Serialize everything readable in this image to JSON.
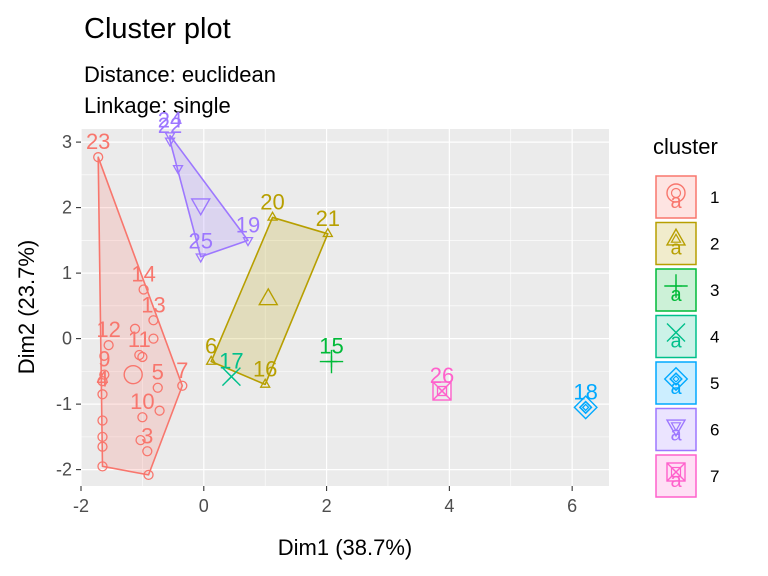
{
  "chart_data": {
    "type": "scatter",
    "title": "Cluster plot",
    "subtitle_lines": [
      "Distance:  euclidean",
      "Linkage:  single"
    ],
    "xlabel": "Dim1 (38.7%)",
    "ylabel": "Dim2 (23.7%)",
    "xlim": [
      -2.0,
      6.6
    ],
    "ylim": [
      -2.25,
      3.2
    ],
    "xticks": [
      -2,
      0,
      2,
      4,
      6
    ],
    "yticks": [
      -2,
      -1,
      0,
      1,
      2,
      3
    ],
    "grid": true,
    "legend": {
      "title": "cluster",
      "position": "right"
    },
    "clusters": [
      {
        "name": "1",
        "color": "#F8766D",
        "shape": "circle",
        "hull": true,
        "center": {
          "x": -1.15,
          "y": -0.55
        },
        "points": [
          {
            "label": "23",
            "x": -1.72,
            "y": 2.77
          },
          {
            "label": "14",
            "x": -0.98,
            "y": 0.75
          },
          {
            "label": "",
            "x": -1.12,
            "y": 0.15
          },
          {
            "label": "13",
            "x": -0.82,
            "y": 0.28
          },
          {
            "label": "12",
            "x": -1.55,
            "y": -0.1
          },
          {
            "label": "",
            "x": -0.82,
            "y": 0.0
          },
          {
            "label": "11",
            "x": -1.05,
            "y": -0.25
          },
          {
            "label": "",
            "x": -1.0,
            "y": -0.28
          },
          {
            "label": "7",
            "x": -0.35,
            "y": -0.72
          },
          {
            "label": "9",
            "x": -1.62,
            "y": -0.55
          },
          {
            "label": "",
            "x": -1.65,
            "y": -0.65
          },
          {
            "label": "5",
            "x": -0.75,
            "y": -0.75
          },
          {
            "label": "4",
            "x": -1.65,
            "y": -0.85
          },
          {
            "label": "",
            "x": -0.72,
            "y": -1.1
          },
          {
            "label": "10",
            "x": -1.0,
            "y": -1.2
          },
          {
            "label": "",
            "x": -1.65,
            "y": -1.25
          },
          {
            "label": "",
            "x": -1.65,
            "y": -1.5
          },
          {
            "label": "",
            "x": -1.03,
            "y": -1.55
          },
          {
            "label": "",
            "x": -1.65,
            "y": -1.65
          },
          {
            "label": "3",
            "x": -0.92,
            "y": -1.72
          },
          {
            "label": "",
            "x": -1.65,
            "y": -1.95
          },
          {
            "label": "",
            "x": -0.9,
            "y": -2.08
          }
        ]
      },
      {
        "name": "2",
        "color": "#B79F00",
        "shape": "triangle",
        "hull": true,
        "center": {
          "x": 1.05,
          "y": 0.6
        },
        "points": [
          {
            "label": "20",
            "x": 1.12,
            "y": 1.85
          },
          {
            "label": "21",
            "x": 2.02,
            "y": 1.6
          },
          {
            "label": "6",
            "x": 0.12,
            "y": -0.35
          },
          {
            "label": "16",
            "x": 1.0,
            "y": -0.7
          }
        ]
      },
      {
        "name": "3",
        "color": "#00BA38",
        "shape": "plus",
        "hull": false,
        "center": {
          "x": 2.08,
          "y": -0.35
        },
        "points": [
          {
            "label": "15",
            "x": 2.08,
            "y": -0.35
          }
        ]
      },
      {
        "name": "4",
        "color": "#00C08B",
        "shape": "cross",
        "hull": false,
        "center": {
          "x": 0.45,
          "y": -0.58
        },
        "points": [
          {
            "label": "17",
            "x": 0.45,
            "y": -0.58
          }
        ]
      },
      {
        "name": "5",
        "color": "#00A9FF",
        "shape": "diamond",
        "hull": false,
        "center": {
          "x": 6.22,
          "y": -1.05
        },
        "points": [
          {
            "label": "18",
            "x": 6.22,
            "y": -1.05
          }
        ]
      },
      {
        "name": "6",
        "color": "#9D77FF",
        "shape": "invtriangle",
        "hull": true,
        "center": {
          "x": -0.05,
          "y": 2.05
        },
        "points": [
          {
            "label": "24",
            "x": -0.55,
            "y": 3.1
          },
          {
            "label": "22",
            "x": -0.55,
            "y": 3.02
          },
          {
            "label": "",
            "x": -0.42,
            "y": 2.6
          },
          {
            "label": "19",
            "x": 0.72,
            "y": 1.5
          },
          {
            "label": "25",
            "x": -0.05,
            "y": 1.25
          }
        ]
      },
      {
        "name": "7",
        "color": "#FF61CC",
        "shape": "squarecross",
        "hull": false,
        "center": {
          "x": 3.88,
          "y": -0.8
        },
        "points": [
          {
            "label": "26",
            "x": 3.88,
            "y": -0.8
          }
        ]
      }
    ]
  }
}
